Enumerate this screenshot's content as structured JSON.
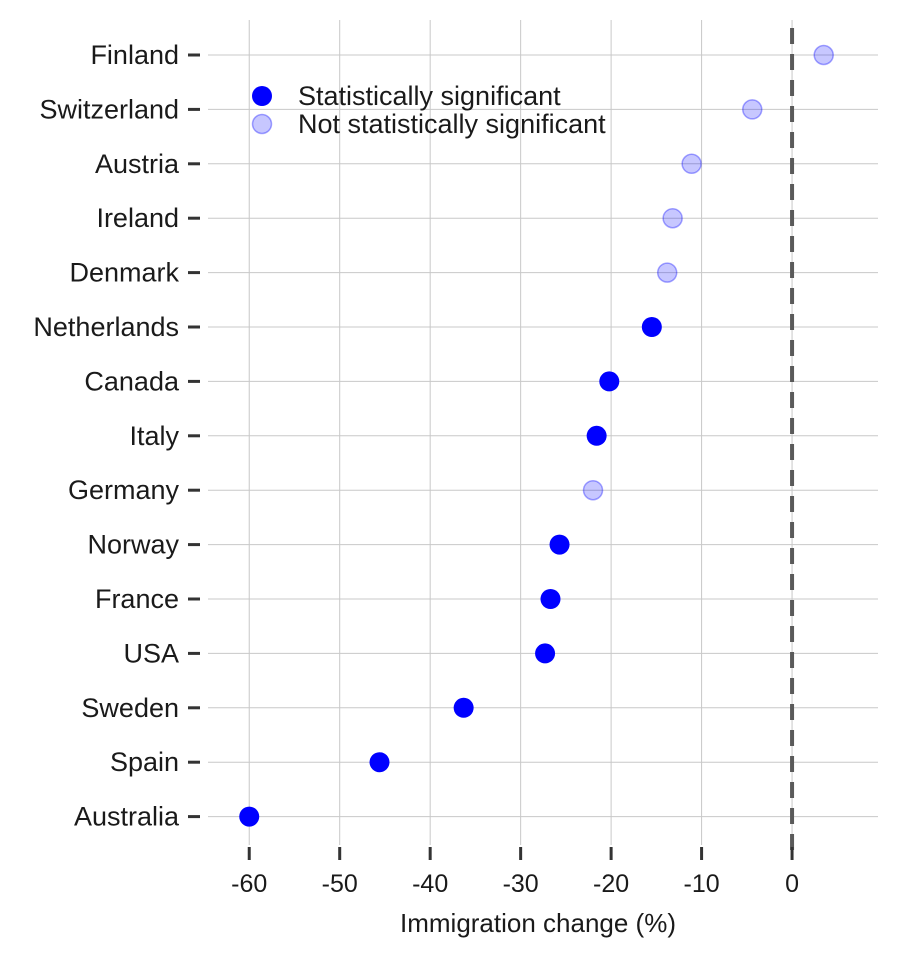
{
  "chart_data": {
    "type": "scatter",
    "xlabel": "Immigration change (%)",
    "ylabel": "",
    "xlim": [
      -65,
      9.5
    ],
    "xticks": [
      -60,
      -50,
      -40,
      -30,
      -20,
      -10,
      0
    ],
    "reference_line_x": 0,
    "grid": true,
    "legend_position": "top-left",
    "legend": [
      {
        "key": "significant",
        "label": "Statistically significant",
        "color": "#0000ff",
        "opacity": 1
      },
      {
        "key": "not_significant",
        "label": "Not statistically significant",
        "color": "#0000ff",
        "opacity": 0.22
      }
    ],
    "categories": [
      "Finland",
      "Switzerland",
      "Austria",
      "Ireland",
      "Denmark",
      "Netherlands",
      "Canada",
      "Italy",
      "Germany",
      "Norway",
      "France",
      "USA",
      "Sweden",
      "Spain",
      "Australia"
    ],
    "values": [
      3.5,
      -4.4,
      -11.1,
      -13.2,
      -13.8,
      -15.5,
      -20.2,
      -21.6,
      -22.0,
      -25.7,
      -26.7,
      -27.3,
      -36.3,
      -45.6,
      -60.0
    ],
    "significant": [
      false,
      false,
      false,
      false,
      false,
      true,
      true,
      true,
      false,
      true,
      true,
      true,
      true,
      true,
      true
    ]
  }
}
